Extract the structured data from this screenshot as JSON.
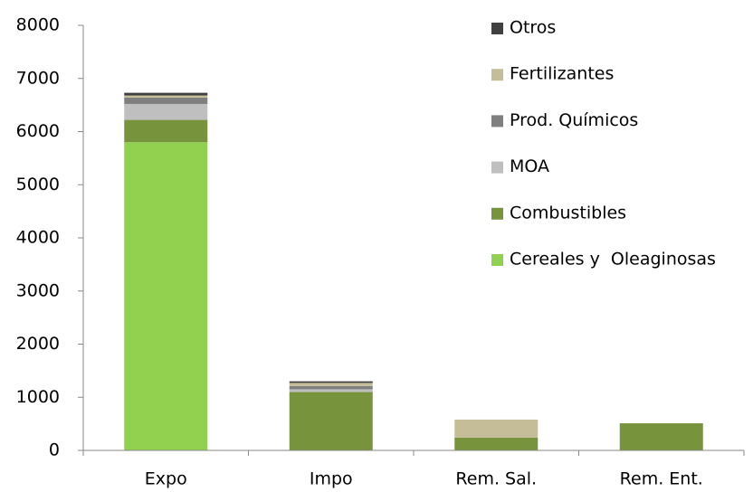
{
  "chart_data": {
    "type": "stacked_bar",
    "categories": [
      "Expo",
      "Impo",
      "Rem. Sal.",
      "Rem. Ent."
    ],
    "series": [
      {
        "name": "Cereales y  Oleaginosas",
        "color": "#92d050",
        "values": [
          5800,
          0,
          0,
          0
        ]
      },
      {
        "name": "Combustibles",
        "color": "#77933c",
        "values": [
          420,
          1100,
          240,
          510
        ]
      },
      {
        "name": "MOA",
        "color": "#bfbfbf",
        "values": [
          300,
          50,
          0,
          0
        ]
      },
      {
        "name": "Prod. Químicos",
        "color": "#7f7f7f",
        "values": [
          120,
          60,
          0,
          0
        ]
      },
      {
        "name": "Fertilizantes",
        "color": "#c4bd97",
        "values": [
          40,
          60,
          340,
          0
        ]
      },
      {
        "name": "Otros",
        "color": "#404040",
        "values": [
          50,
          30,
          0,
          0
        ]
      }
    ],
    "ylim": [
      0,
      8000
    ],
    "yticks": [
      0,
      1000,
      2000,
      3000,
      4000,
      5000,
      6000,
      7000,
      8000
    ],
    "grid": false,
    "legend": "upper right"
  }
}
